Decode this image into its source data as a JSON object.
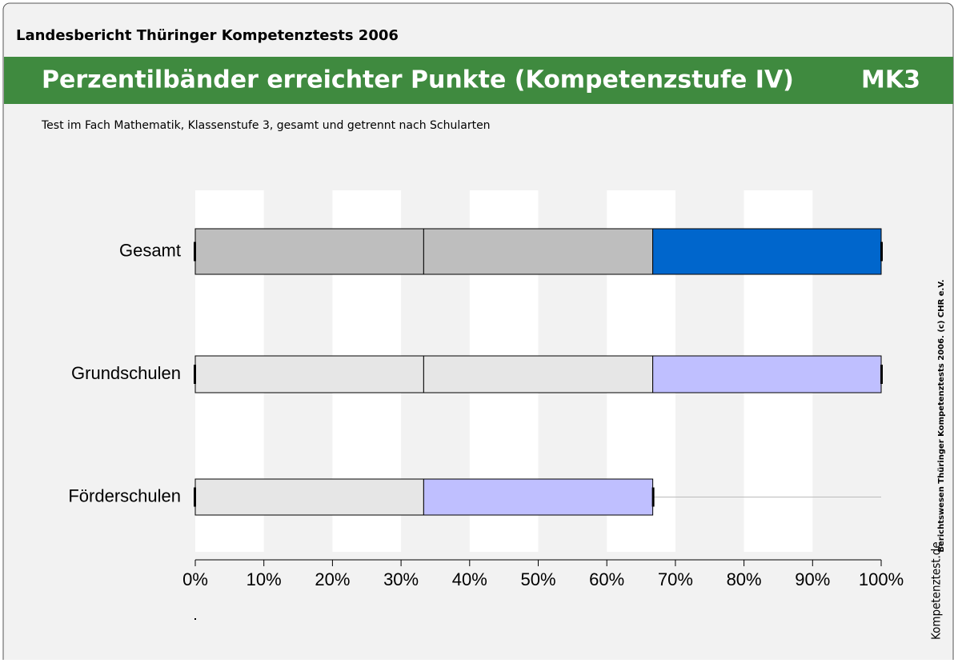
{
  "header": {
    "report": "Landesbericht Thüringer Kompetenztests 2006",
    "title": "Perzentilbänder erreichter Punkte (Kompetenzstufe IV)",
    "code": "MK3",
    "subtitle": "Test im Fach Mathematik, Klassenstufe 3, gesamt und getrennt nach Schularten",
    "side_note": "Berichtswesen Thüringer Kompetenztests 2006. (c) CHR e.V.",
    "logo": "Kompetenztest.de"
  },
  "chart_data": {
    "type": "percentile-band",
    "categories": [
      "Gesamt",
      "Grundschulen",
      "Förderschulen"
    ],
    "rows": [
      {
        "segments": [
          {
            "value": 33.3,
            "color": "#bebebe"
          },
          {
            "value": 33.4,
            "color": "#bebebe"
          },
          {
            "value": 33.3,
            "color": "#0066cc"
          }
        ],
        "max": 100
      },
      {
        "segments": [
          {
            "value": 33.3,
            "color": "#e6e6e6"
          },
          {
            "value": 33.4,
            "color": "#e6e6e6"
          },
          {
            "value": 33.3,
            "color": "#bfbfff"
          }
        ],
        "max": 100
      },
      {
        "segments": [
          {
            "value": 33.3,
            "color": "#e6e6e6"
          },
          {
            "value": 33.4,
            "color": "#bfbfff"
          }
        ],
        "max": 100
      }
    ],
    "xlim": [
      0,
      100
    ],
    "xticks": [
      {
        "value": 0,
        "label": "0%"
      },
      {
        "value": 10,
        "label": "10%"
      },
      {
        "value": 20,
        "label": "20%"
      },
      {
        "value": 30,
        "label": "30%"
      },
      {
        "value": 40,
        "label": "40%"
      },
      {
        "value": 50,
        "label": "50%"
      },
      {
        "value": 60,
        "label": "60%"
      },
      {
        "value": 70,
        "label": "70%"
      },
      {
        "value": 80,
        "label": "80%"
      },
      {
        "value": 90,
        "label": "90%"
      },
      {
        "value": 100,
        "label": "100%"
      }
    ]
  }
}
